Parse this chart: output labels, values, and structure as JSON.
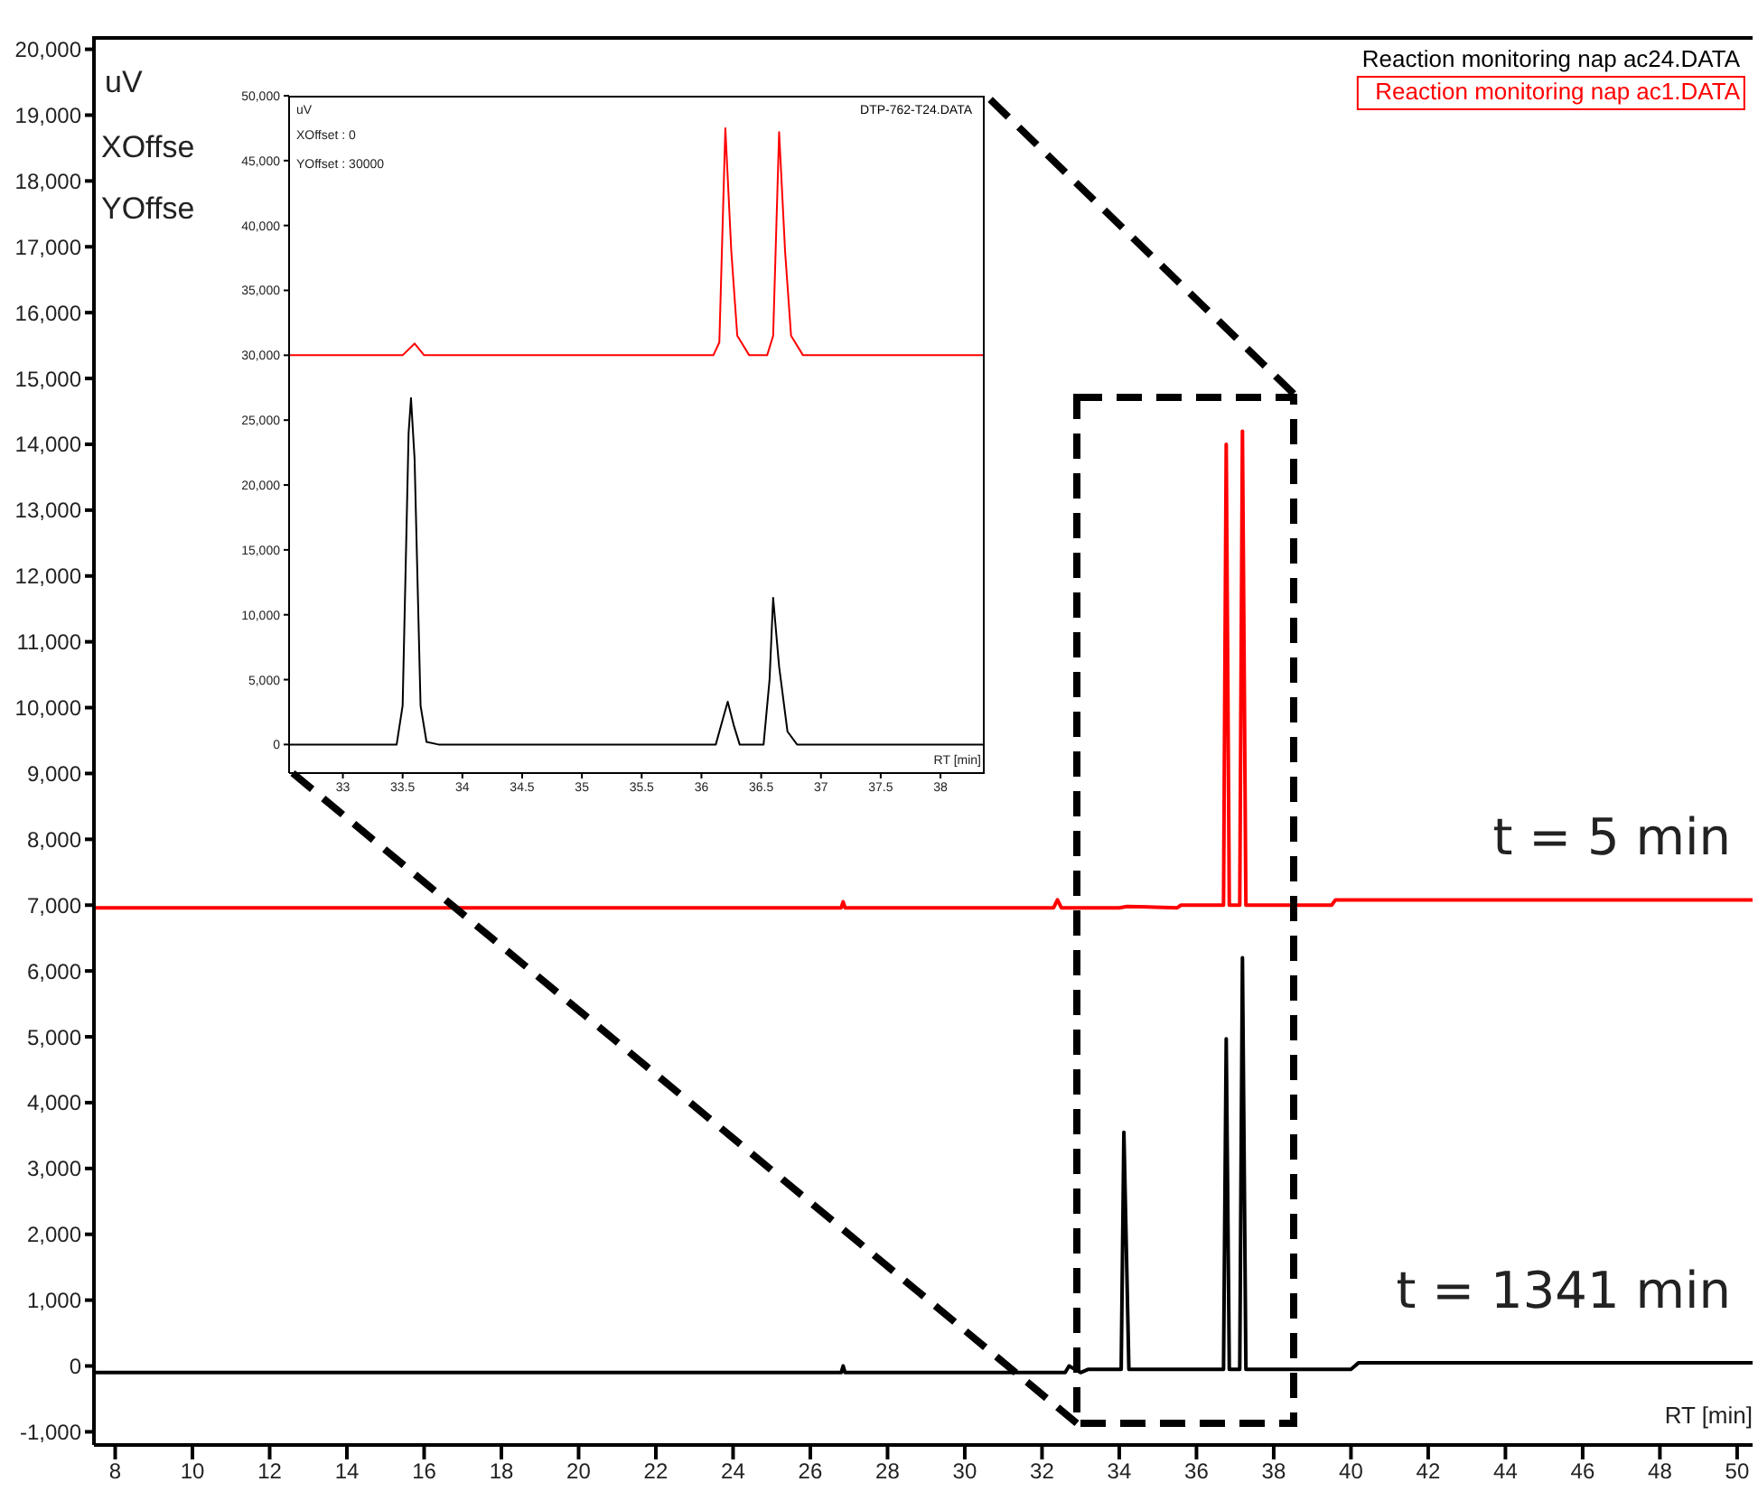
{
  "chart_data": [
    {
      "type": "line",
      "ylabel": "uV",
      "xlabel": "RT [min]",
      "legend": "top right",
      "annotations": [
        "XOffse",
        "YOffse",
        "t = 5 min",
        "t = 1341 min"
      ],
      "xlim": [
        7.45,
        50.4
      ],
      "ylim": [
        -1200,
        20200
      ],
      "xticks": [
        8,
        10,
        12,
        14,
        16,
        18,
        20,
        22,
        24,
        26,
        28,
        30,
        32,
        34,
        36,
        38,
        40,
        42,
        44,
        46,
        48,
        50
      ],
      "yticks": [
        {
          "value": -1000,
          "label": "-1,000"
        },
        0,
        {
          "value": 1000,
          "label": "1,000"
        },
        {
          "value": 2000,
          "label": "2,000"
        },
        {
          "value": 3000,
          "label": "3,000"
        },
        {
          "value": 4000,
          "label": "4,000"
        },
        {
          "value": 5000,
          "label": "5,000"
        },
        {
          "value": 6000,
          "label": "6,000"
        },
        {
          "value": 7000,
          "label": "7,000"
        },
        {
          "value": 8000,
          "label": "8,000"
        },
        {
          "value": 9000,
          "label": "9,000"
        },
        {
          "value": 10000,
          "label": "10,000"
        },
        {
          "value": 11000,
          "label": "11,000"
        },
        {
          "value": 12000,
          "label": "12,000"
        },
        {
          "value": 13000,
          "label": "13,000"
        },
        {
          "value": 14000,
          "label": "14,000"
        },
        {
          "value": 15000,
          "label": "15,000"
        },
        {
          "value": 16000,
          "label": "16,000"
        },
        {
          "value": 17000,
          "label": "17,000"
        },
        {
          "value": 18000,
          "label": "18,000"
        },
        {
          "value": 19000,
          "label": "19,000"
        },
        {
          "value": 20000,
          "label": "20,000"
        }
      ],
      "series": [
        {
          "name": "Reaction monitoring nap ac24.DATA",
          "color": "#000000",
          "x": [
            7.45,
            26.8,
            26.85,
            26.9,
            32.6,
            32.7,
            33,
            33.2,
            34.05,
            34.12,
            34.25,
            36.7,
            36.77,
            36.85,
            37.12,
            37.19,
            37.28,
            40,
            40.2,
            50.4
          ],
          "values": [
            -100,
            -100,
            0,
            -100,
            -100,
            0,
            -100,
            -50,
            -50,
            3550,
            -50,
            -50,
            4970,
            -50,
            -50,
            6200,
            -50,
            -50,
            50,
            50
          ]
        },
        {
          "name": "Reaction monitoring nap ac1.DATA",
          "color": "#ff0000",
          "x": [
            7.45,
            15,
            26.8,
            26.85,
            26.9,
            32.3,
            32.4,
            32.5,
            34,
            34.2,
            35.5,
            35.6,
            36.7,
            36.77,
            36.85,
            37.12,
            37.19,
            37.28,
            39.5,
            39.6,
            50.4
          ],
          "values": [
            6960,
            6960,
            6960,
            7050,
            6960,
            6960,
            7080,
            6960,
            6960,
            6980,
            6960,
            7000,
            7000,
            14000,
            7000,
            7000,
            14200,
            7000,
            7000,
            7080,
            7080
          ]
        }
      ]
    },
    {
      "type": "line",
      "ylabel": "uV",
      "xlabel": "RT [min]",
      "legend": "top right",
      "annotations": [
        "XOffset : 0",
        "YOffset : 30000"
      ],
      "xlim": [
        32.55,
        38.37
      ],
      "ylim": [
        -2200,
        50000
      ],
      "xticks": [
        33,
        33.5,
        34,
        34.5,
        35,
        35.5,
        36,
        36.5,
        37,
        37.5,
        38
      ],
      "yticks": [
        0,
        {
          "value": 5000,
          "label": "5,000"
        },
        {
          "value": 10000,
          "label": "10,000"
        },
        {
          "value": 15000,
          "label": "15,000"
        },
        {
          "value": 20000,
          "label": "20,000"
        },
        {
          "value": 25000,
          "label": "25,000"
        },
        {
          "value": 30000,
          "label": "30,000"
        },
        {
          "value": 35000,
          "label": "35,000"
        },
        {
          "value": 40000,
          "label": "40,000"
        },
        {
          "value": 45000,
          "label": "45,000"
        },
        {
          "value": 50000,
          "label": "50,000"
        }
      ],
      "series": [
        {
          "name": "DTP-762-T24.DATA",
          "color": "#000000",
          "x": [
            32.55,
            33.45,
            33.5,
            33.55,
            33.57,
            33.6,
            33.65,
            33.7,
            33.8,
            36.12,
            36.18,
            36.22,
            36.27,
            36.32,
            36.52,
            36.57,
            36.6,
            36.65,
            36.72,
            36.8,
            38.37
          ],
          "values": [
            0,
            0,
            3000,
            24000,
            26700,
            22000,
            3000,
            200,
            0,
            0,
            2000,
            3300,
            1500,
            0,
            0,
            5000,
            11300,
            6000,
            1000,
            0,
            0
          ]
        },
        {
          "color": "#ff0000",
          "x": [
            32.55,
            33.5,
            33.6,
            33.68,
            36.1,
            36.15,
            36.2,
            36.25,
            36.3,
            36.4,
            36.55,
            36.6,
            36.65,
            36.7,
            36.75,
            36.85,
            38.37
          ],
          "values": [
            30000,
            30000,
            30900,
            30000,
            30000,
            31000,
            47500,
            38000,
            31500,
            30000,
            30000,
            31500,
            47200,
            38000,
            31500,
            30000,
            30000
          ]
        }
      ]
    }
  ]
}
